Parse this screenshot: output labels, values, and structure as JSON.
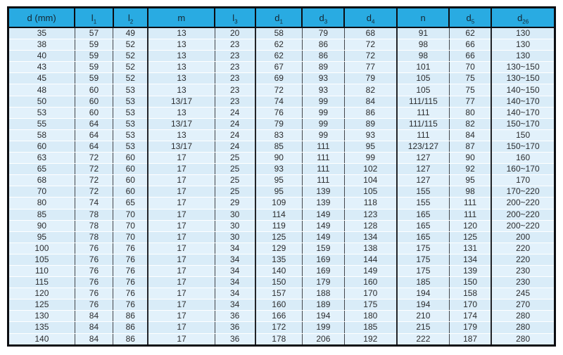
{
  "table": {
    "columns": [
      {
        "base": "d",
        "sub": "",
        "suffix": " (mm)"
      },
      {
        "base": "l",
        "sub": "1",
        "suffix": ""
      },
      {
        "base": "l",
        "sub": "2",
        "suffix": ""
      },
      {
        "base": "m",
        "sub": "",
        "suffix": ""
      },
      {
        "base": "l",
        "sub": "3",
        "suffix": ""
      },
      {
        "base": "d",
        "sub": "1",
        "suffix": ""
      },
      {
        "base": "d",
        "sub": "3",
        "suffix": ""
      },
      {
        "base": "d",
        "sub": "4",
        "suffix": ""
      },
      {
        "base": "n",
        "sub": "",
        "suffix": ""
      },
      {
        "base": "d",
        "sub": "5",
        "suffix": ""
      },
      {
        "base": "d",
        "sub": "26",
        "suffix": ""
      }
    ],
    "rows": [
      [
        "35",
        "57",
        "49",
        "13",
        "20",
        "58",
        "79",
        "68",
        "91",
        "62",
        "130"
      ],
      [
        "38",
        "59",
        "52",
        "13",
        "23",
        "62",
        "86",
        "72",
        "98",
        "66",
        "130"
      ],
      [
        "40",
        "59",
        "52",
        "13",
        "23",
        "62",
        "86",
        "72",
        "98",
        "66",
        "130"
      ],
      [
        "43",
        "59",
        "52",
        "13",
        "23",
        "67",
        "89",
        "77",
        "101",
        "70",
        "130~150"
      ],
      [
        "45",
        "59",
        "52",
        "13",
        "23",
        "69",
        "93",
        "79",
        "105",
        "75",
        "130~150"
      ],
      [
        "48",
        "60",
        "53",
        "13",
        "23",
        "72",
        "93",
        "82",
        "105",
        "75",
        "140~150"
      ],
      [
        "50",
        "60",
        "53",
        "13/17",
        "23",
        "74",
        "99",
        "84",
        "111/115",
        "77",
        "140~170"
      ],
      [
        "53",
        "60",
        "53",
        "13",
        "24",
        "76",
        "99",
        "86",
        "111",
        "80",
        "140~170"
      ],
      [
        "55",
        "64",
        "53",
        "13/17",
        "24",
        "79",
        "99",
        "89",
        "111/115",
        "82",
        "150~170"
      ],
      [
        "58",
        "64",
        "53",
        "13",
        "24",
        "83",
        "99",
        "93",
        "111",
        "84",
        "150"
      ],
      [
        "60",
        "64",
        "53",
        "13/17",
        "24",
        "85",
        "111",
        "95",
        "123/127",
        "87",
        "150~170"
      ],
      [
        "63",
        "72",
        "60",
        "17",
        "25",
        "90",
        "111",
        "99",
        "127",
        "90",
        "160"
      ],
      [
        "65",
        "72",
        "60",
        "17",
        "25",
        "93",
        "111",
        "102",
        "127",
        "92",
        "160~170"
      ],
      [
        "68",
        "72",
        "60",
        "17",
        "25",
        "95",
        "111",
        "104",
        "127",
        "95",
        "170"
      ],
      [
        "70",
        "72",
        "60",
        "17",
        "25",
        "95",
        "139",
        "105",
        "155",
        "98",
        "170~220"
      ],
      [
        "80",
        "74",
        "65",
        "17",
        "29",
        "109",
        "139",
        "118",
        "155",
        "111",
        "200~220"
      ],
      [
        "85",
        "78",
        "70",
        "17",
        "30",
        "114",
        "149",
        "123",
        "165",
        "111",
        "200~220"
      ],
      [
        "90",
        "78",
        "70",
        "17",
        "30",
        "119",
        "149",
        "128",
        "165",
        "120",
        "200~220"
      ],
      [
        "95",
        "78",
        "70",
        "17",
        "30",
        "125",
        "149",
        "134",
        "165",
        "125",
        "200"
      ],
      [
        "100",
        "76",
        "76",
        "17",
        "34",
        "129",
        "159",
        "138",
        "175",
        "131",
        "220"
      ],
      [
        "105",
        "76",
        "76",
        "17",
        "34",
        "135",
        "169",
        "144",
        "175",
        "134",
        "220"
      ],
      [
        "110",
        "76",
        "76",
        "17",
        "34",
        "140",
        "169",
        "149",
        "175",
        "139",
        "230"
      ],
      [
        "115",
        "76",
        "76",
        "17",
        "34",
        "150",
        "179",
        "160",
        "185",
        "150",
        "230"
      ],
      [
        "120",
        "76",
        "76",
        "17",
        "34",
        "157",
        "188",
        "170",
        "194",
        "158",
        "245"
      ],
      [
        "125",
        "76",
        "76",
        "17",
        "34",
        "160",
        "189",
        "175",
        "194",
        "170",
        "270"
      ],
      [
        "130",
        "84",
        "86",
        "17",
        "36",
        "166",
        "194",
        "180",
        "210",
        "174",
        "280"
      ],
      [
        "135",
        "84",
        "86",
        "17",
        "36",
        "172",
        "199",
        "185",
        "215",
        "179",
        "280"
      ],
      [
        "140",
        "84",
        "86",
        "17",
        "36",
        "178",
        "206",
        "192",
        "222",
        "187",
        "280"
      ]
    ]
  },
  "colors": {
    "header_bg": "#29abe2",
    "header_text": "#14242f",
    "row_bg": "#d9ecf8",
    "row_separator": "#ffffff",
    "grid_line": "#43464b",
    "outer_border": "#0c0d11",
    "page_bg": "#ffffff"
  }
}
